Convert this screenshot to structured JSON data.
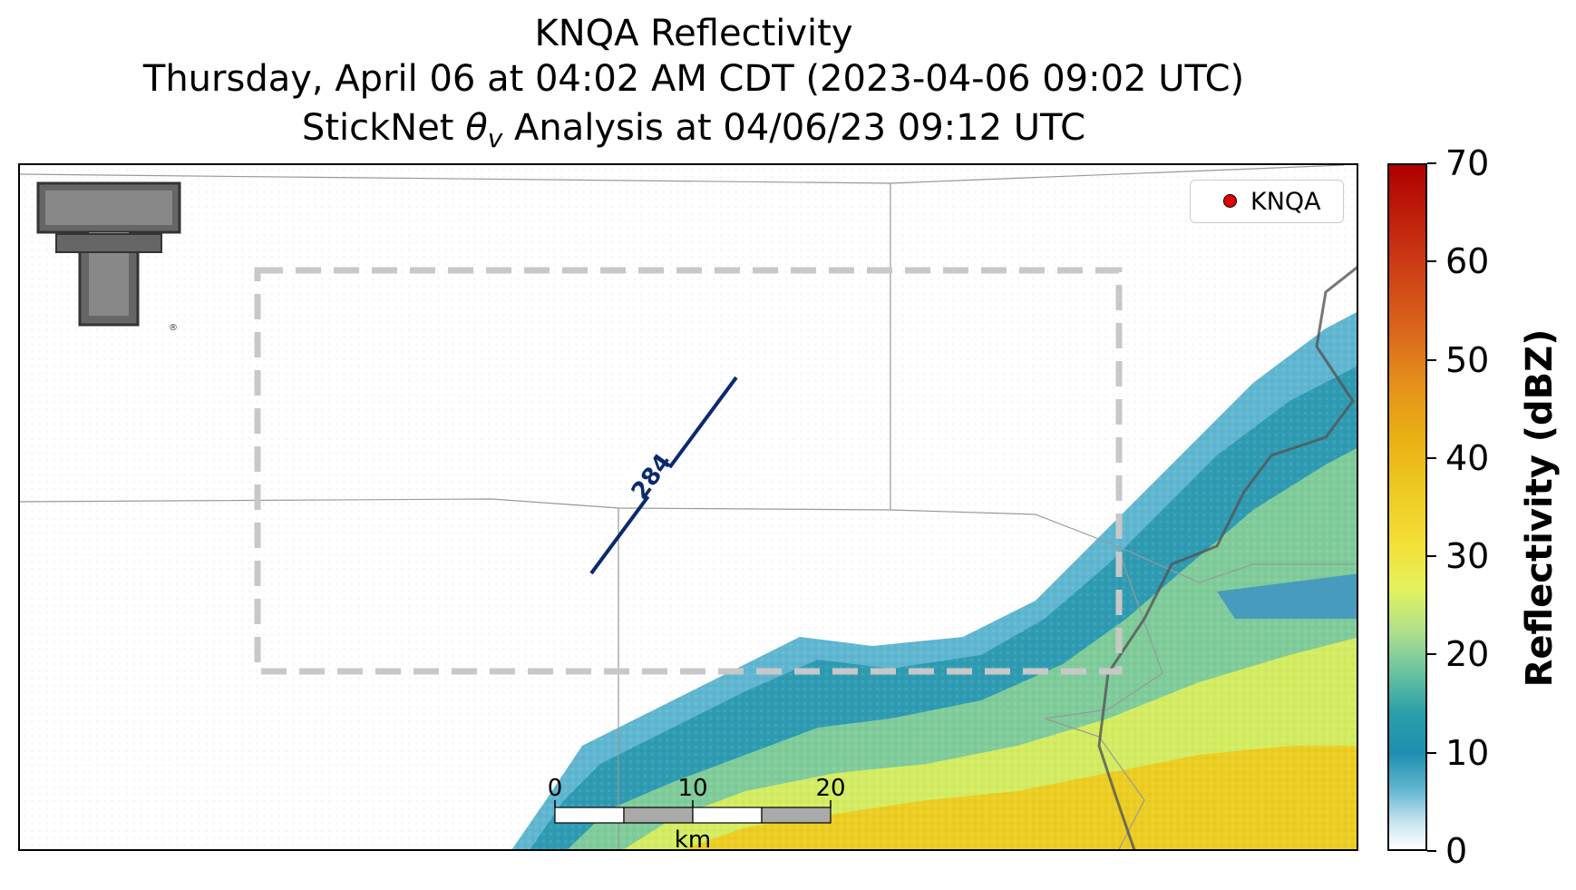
{
  "title": {
    "line1": "KNQA Reflectivity",
    "line2": "Thursday, April 06 at 04:02 AM CDT (2023-04-06 09:02 UTC)",
    "line3_prefix": "StickNet ",
    "line3_theta": "θ",
    "line3_sub": "v",
    "line3_suffix": " Analysis at 04/06/23 09:12 UTC"
  },
  "legend": {
    "label": "KNQA",
    "marker_color": "#e00000"
  },
  "contour": {
    "label": "284",
    "color": "#0b2a6e"
  },
  "scalebar": {
    "ticks": [
      "0",
      "10",
      "20"
    ],
    "unit": "km"
  },
  "colorbar": {
    "title": "Reflectivity (dBZ)",
    "ticks": [
      "0",
      "10",
      "20",
      "30",
      "40",
      "50",
      "60",
      "70"
    ],
    "range": [
      0,
      70
    ]
  },
  "logo": {
    "name": "Double T logo",
    "mark": "®"
  }
}
